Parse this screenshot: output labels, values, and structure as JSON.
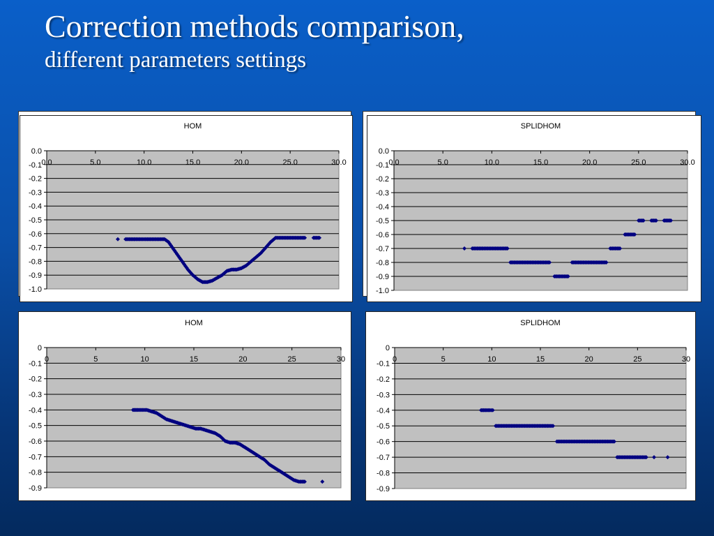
{
  "slide": {
    "title": "Correction methods comparison,",
    "subtitle": "different parameters settings"
  },
  "colors": {
    "background": "#0a4fa8",
    "plot_area": "#c0c0c0",
    "marker": "#000080",
    "title_text": "#ffffff"
  },
  "chart_data": [
    {
      "type": "scatter",
      "title": "HOM",
      "xlim": [
        0,
        30
      ],
      "ylim": [
        -1.0,
        0.0
      ],
      "x_ticks": [
        "0.0",
        "5.0",
        "10.0",
        "15.0",
        "20.0",
        "25.0",
        "30.0"
      ],
      "y_ticks": [
        "0.0",
        "-0.1",
        "-0.2",
        "-0.3",
        "-0.4",
        "-0.5",
        "-0.6",
        "-0.7",
        "-0.8",
        "-0.9",
        "-1.0"
      ],
      "grid": true,
      "x": [
        7.3,
        8.1,
        8.6,
        9.2,
        9.7,
        10.1,
        10.6,
        11.1,
        11.6,
        12.1,
        12.5,
        13.0,
        13.5,
        14.0,
        14.5,
        15.0,
        15.5,
        16.0,
        16.5,
        17.0,
        17.5,
        18.0,
        18.5,
        19.0,
        19.5,
        20.0,
        20.5,
        21.0,
        21.5,
        22.0,
        22.5,
        23.0,
        23.5,
        24.0,
        24.5,
        25.0,
        25.5,
        26.0,
        26.5,
        27.4,
        28.0
      ],
      "y": [
        -0.64,
        -0.64,
        -0.64,
        -0.64,
        -0.64,
        -0.64,
        -0.64,
        -0.64,
        -0.64,
        -0.64,
        -0.66,
        -0.71,
        -0.76,
        -0.81,
        -0.86,
        -0.9,
        -0.93,
        -0.95,
        -0.95,
        -0.94,
        -0.92,
        -0.9,
        -0.87,
        -0.86,
        -0.86,
        -0.85,
        -0.83,
        -0.8,
        -0.77,
        -0.74,
        -0.7,
        -0.66,
        -0.63,
        -0.63,
        -0.63,
        -0.63,
        -0.63,
        -0.63,
        -0.63,
        -0.63,
        -0.63
      ]
    },
    {
      "type": "scatter",
      "title": "SPLIDHOM",
      "xlim": [
        0,
        30
      ],
      "ylim": [
        -1.0,
        0.0
      ],
      "x_ticks": [
        "0.0",
        "5.0",
        "10.0",
        "15.0",
        "20.0",
        "25.0",
        "30.0"
      ],
      "y_ticks": [
        "0.0",
        "-0.1",
        "-0.2",
        "-0.3",
        "-0.4",
        "-0.5",
        "-0.6",
        "-0.7",
        "-0.8",
        "-0.9",
        "-1.0"
      ],
      "grid": true,
      "x": [
        7.2,
        8.0,
        8.5,
        9.1,
        9.6,
        10.1,
        10.6,
        11.1,
        11.6,
        11.9,
        12.4,
        12.9,
        13.4,
        13.9,
        14.4,
        14.9,
        15.4,
        15.9,
        16.4,
        16.8,
        17.3,
        17.8,
        18.2,
        18.7,
        19.2,
        19.7,
        20.2,
        20.7,
        21.2,
        21.7,
        22.1,
        22.6,
        23.1,
        23.6,
        24.1,
        24.6,
        25.0,
        25.5,
        26.3,
        26.8,
        27.6,
        28.3
      ],
      "y": [
        -0.7,
        -0.7,
        -0.7,
        -0.7,
        -0.7,
        -0.7,
        -0.7,
        -0.7,
        -0.7,
        -0.8,
        -0.8,
        -0.8,
        -0.8,
        -0.8,
        -0.8,
        -0.8,
        -0.8,
        -0.8,
        -0.9,
        -0.9,
        -0.9,
        -0.9,
        -0.8,
        -0.8,
        -0.8,
        -0.8,
        -0.8,
        -0.8,
        -0.8,
        -0.8,
        -0.7,
        -0.7,
        -0.7,
        -0.6,
        -0.6,
        -0.6,
        -0.5,
        -0.5,
        -0.5,
        -0.5,
        -0.5,
        -0.5
      ]
    },
    {
      "type": "scatter",
      "title": "HOM",
      "xlim": [
        0,
        30
      ],
      "ylim": [
        -0.9,
        0.0
      ],
      "x_ticks": [
        "0",
        "5",
        "10",
        "15",
        "20",
        "25",
        "30"
      ],
      "y_ticks": [
        "0",
        "-0.1",
        "-0.2",
        "-0.3",
        "-0.4",
        "-0.5",
        "-0.6",
        "-0.7",
        "-0.8",
        "-0.9"
      ],
      "grid": true,
      "x": [
        8.8,
        9.4,
        9.8,
        10.2,
        10.7,
        11.2,
        11.7,
        12.2,
        12.7,
        13.2,
        13.7,
        14.2,
        14.7,
        15.2,
        15.7,
        16.2,
        16.7,
        17.2,
        17.7,
        18.2,
        18.7,
        19.2,
        19.7,
        20.2,
        20.7,
        21.2,
        21.7,
        22.2,
        22.7,
        23.2,
        23.7,
        24.2,
        24.7,
        25.2,
        25.7,
        26.3,
        28.1
      ],
      "y": [
        -0.4,
        -0.4,
        -0.4,
        -0.4,
        -0.41,
        -0.42,
        -0.44,
        -0.46,
        -0.47,
        -0.48,
        -0.49,
        -0.5,
        -0.51,
        -0.52,
        -0.52,
        -0.53,
        -0.54,
        -0.55,
        -0.57,
        -0.6,
        -0.61,
        -0.61,
        -0.62,
        -0.64,
        -0.66,
        -0.68,
        -0.7,
        -0.72,
        -0.75,
        -0.77,
        -0.79,
        -0.81,
        -0.83,
        -0.85,
        -0.86,
        -0.86,
        -0.86
      ]
    },
    {
      "type": "scatter",
      "title": "SPLIDHOM",
      "xlim": [
        0,
        30
      ],
      "ylim": [
        -0.9,
        0.0
      ],
      "x_ticks": [
        "0",
        "5",
        "10",
        "15",
        "20",
        "25",
        "30"
      ],
      "y_ticks": [
        "0",
        "-0.1",
        "-0.2",
        "-0.3",
        "-0.4",
        "-0.5",
        "-0.6",
        "-0.7",
        "-0.8",
        "-0.9"
      ],
      "grid": true,
      "x": [
        8.9,
        9.4,
        9.8,
        10.1,
        10.4,
        10.9,
        11.4,
        11.9,
        12.4,
        12.9,
        13.4,
        13.9,
        14.4,
        14.9,
        15.4,
        15.9,
        16.3,
        16.7,
        17.2,
        17.7,
        18.2,
        18.7,
        19.2,
        19.7,
        20.2,
        20.7,
        21.2,
        21.7,
        22.2,
        22.6,
        22.9,
        23.4,
        23.9,
        24.4,
        24.9,
        25.4,
        25.9,
        26.7,
        28.1
      ],
      "y": [
        -0.4,
        -0.4,
        -0.4,
        -0.4,
        -0.5,
        -0.5,
        -0.5,
        -0.5,
        -0.5,
        -0.5,
        -0.5,
        -0.5,
        -0.5,
        -0.5,
        -0.5,
        -0.5,
        -0.5,
        -0.6,
        -0.6,
        -0.6,
        -0.6,
        -0.6,
        -0.6,
        -0.6,
        -0.6,
        -0.6,
        -0.6,
        -0.6,
        -0.6,
        -0.6,
        -0.7,
        -0.7,
        -0.7,
        -0.7,
        -0.7,
        -0.7,
        -0.7,
        -0.7,
        -0.7
      ]
    }
  ]
}
